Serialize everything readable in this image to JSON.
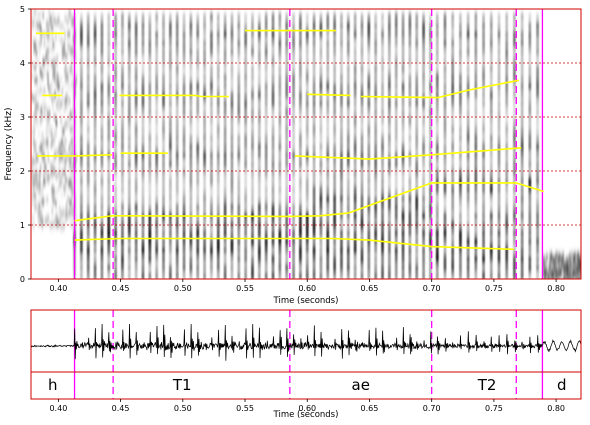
{
  "spectrogram": {
    "ylabel": "Frequency (kHz)",
    "xlabel": "Time (seconds)",
    "yticks": [
      "0",
      "1",
      "2",
      "3",
      "4",
      "5"
    ],
    "xticks": [
      "0.40",
      "0.45",
      "0.50",
      "0.55",
      "0.60",
      "0.65",
      "0.70",
      "0.75",
      "0.80"
    ],
    "t_range": [
      0.378,
      0.82
    ],
    "f_range": [
      0,
      5
    ],
    "colors": {
      "frame": "#d00000",
      "grid": "#d00000",
      "boundary": "#ff00ff",
      "formant": "#ffff00"
    }
  },
  "waveform": {
    "xlabel": "Time (seconds)",
    "xticks": [
      "0.40",
      "0.45",
      "0.50",
      "0.55",
      "0.60",
      "0.65",
      "0.70",
      "0.75",
      "0.80"
    ]
  },
  "segments": [
    {
      "label": "h",
      "start": 0.378,
      "end": 0.413
    },
    {
      "label": "T1",
      "start": 0.413,
      "end": 0.586
    },
    {
      "label": "ae",
      "start": 0.586,
      "end": 0.7
    },
    {
      "label": "T2",
      "start": 0.7,
      "end": 0.789
    },
    {
      "label": "d",
      "start": 0.789,
      "end": 0.82
    }
  ],
  "boundaries": [
    {
      "t": 0.413,
      "style": "solid"
    },
    {
      "t": 0.444,
      "style": "dashed"
    },
    {
      "t": 0.586,
      "style": "dashed"
    },
    {
      "t": 0.7,
      "style": "dashed"
    },
    {
      "t": 0.768,
      "style": "dashed"
    },
    {
      "t": 0.789,
      "style": "solid"
    }
  ],
  "formant_tracks": [
    {
      "points": [
        [
          0.382,
          4.55
        ],
        [
          0.405,
          4.55
        ]
      ]
    },
    {
      "points": [
        [
          0.387,
          3.4
        ],
        [
          0.403,
          3.4
        ]
      ]
    },
    {
      "points": [
        [
          0.383,
          2.28
        ],
        [
          0.413,
          2.28
        ],
        [
          0.443,
          2.3
        ]
      ]
    },
    {
      "points": [
        [
          0.449,
          3.4
        ],
        [
          0.51,
          3.4
        ],
        [
          0.515,
          3.38
        ],
        [
          0.537,
          3.38
        ]
      ]
    },
    {
      "points": [
        [
          0.45,
          2.33
        ],
        [
          0.488,
          2.33
        ]
      ]
    },
    {
      "points": [
        [
          0.55,
          4.6
        ],
        [
          0.623,
          4.6
        ]
      ]
    },
    {
      "points": [
        [
          0.6,
          3.42
        ],
        [
          0.635,
          3.4
        ]
      ]
    },
    {
      "points": [
        [
          0.643,
          3.38
        ],
        [
          0.705,
          3.36
        ],
        [
          0.73,
          3.5
        ],
        [
          0.77,
          3.68
        ]
      ]
    },
    {
      "points": [
        [
          0.59,
          2.28
        ],
        [
          0.65,
          2.22
        ],
        [
          0.7,
          2.3
        ],
        [
          0.772,
          2.43
        ]
      ]
    },
    {
      "points": [
        [
          0.413,
          1.08
        ],
        [
          0.443,
          1.17
        ],
        [
          0.586,
          1.16
        ],
        [
          0.61,
          1.17
        ],
        [
          0.633,
          1.22
        ],
        [
          0.7,
          1.78
        ],
        [
          0.768,
          1.78
        ],
        [
          0.79,
          1.62
        ]
      ]
    },
    {
      "points": [
        [
          0.413,
          0.72
        ],
        [
          0.45,
          0.75
        ],
        [
          0.62,
          0.75
        ],
        [
          0.65,
          0.72
        ],
        [
          0.7,
          0.6
        ],
        [
          0.766,
          0.55
        ]
      ]
    }
  ]
}
